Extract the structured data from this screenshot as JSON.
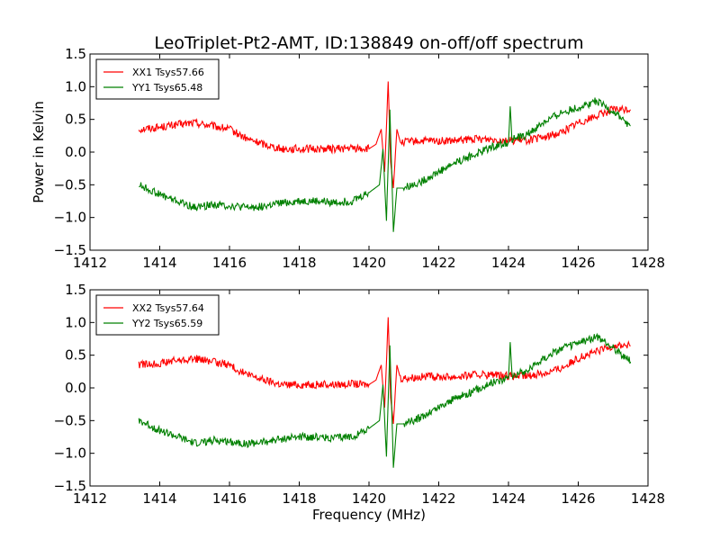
{
  "figure": {
    "title": "LeoTriplet-Pt2-AMT, ID:138849 on-off/off spectrum"
  },
  "chart_data": [
    {
      "type": "line",
      "title": "LeoTriplet-Pt2-AMT, ID:138849 on-off/off spectrum",
      "xlabel": "",
      "ylabel": "Power in Kelvin",
      "xlim": [
        1412,
        1428
      ],
      "ylim": [
        -1.5,
        1.5
      ],
      "xticks": [
        "1412",
        "1414",
        "1416",
        "1418",
        "1420",
        "1422",
        "1424",
        "1426",
        "1428"
      ],
      "yticks": [
        "1.5",
        "1.0",
        "0.5",
        "0.0",
        "−0.5",
        "−1.0",
        "−1.5"
      ],
      "grid": false,
      "legend": "top-left",
      "series": [
        {
          "name": "XX1 Tsys57.66",
          "color": "#ff0000",
          "points": [
            [
              1413.4,
              0.35
            ],
            [
              1414.0,
              0.38
            ],
            [
              1414.5,
              0.42
            ],
            [
              1415.0,
              0.45
            ],
            [
              1415.5,
              0.4
            ],
            [
              1416.0,
              0.35
            ],
            [
              1416.5,
              0.2
            ],
            [
              1417.0,
              0.12
            ],
            [
              1417.5,
              0.05
            ],
            [
              1418.0,
              0.05
            ],
            [
              1418.5,
              0.05
            ],
            [
              1419.0,
              0.05
            ],
            [
              1419.5,
              0.06
            ],
            [
              1420.0,
              0.05
            ],
            [
              1420.2,
              0.12
            ],
            [
              1420.35,
              0.35
            ],
            [
              1420.45,
              -0.3
            ],
            [
              1420.55,
              1.08
            ],
            [
              1420.62,
              -0.15
            ],
            [
              1420.7,
              -0.55
            ],
            [
              1420.8,
              0.35
            ],
            [
              1420.9,
              0.15
            ],
            [
              1421.5,
              0.17
            ],
            [
              1422.0,
              0.17
            ],
            [
              1422.5,
              0.17
            ],
            [
              1423.0,
              0.2
            ],
            [
              1423.5,
              0.2
            ],
            [
              1424.0,
              0.18
            ],
            [
              1424.5,
              0.18
            ],
            [
              1425.0,
              0.22
            ],
            [
              1425.5,
              0.3
            ],
            [
              1426.0,
              0.45
            ],
            [
              1426.5,
              0.55
            ],
            [
              1427.0,
              0.65
            ],
            [
              1427.5,
              0.65
            ]
          ]
        },
        {
          "name": "YY1 Tsys65.48",
          "color": "#008000",
          "points": [
            [
              1413.4,
              -0.5
            ],
            [
              1414.0,
              -0.65
            ],
            [
              1414.5,
              -0.75
            ],
            [
              1415.0,
              -0.85
            ],
            [
              1415.5,
              -0.8
            ],
            [
              1416.0,
              -0.82
            ],
            [
              1416.5,
              -0.85
            ],
            [
              1417.0,
              -0.83
            ],
            [
              1417.5,
              -0.78
            ],
            [
              1418.0,
              -0.75
            ],
            [
              1418.5,
              -0.75
            ],
            [
              1419.0,
              -0.77
            ],
            [
              1419.5,
              -0.75
            ],
            [
              1420.0,
              -0.62
            ],
            [
              1420.3,
              -0.5
            ],
            [
              1420.4,
              0.05
            ],
            [
              1420.5,
              -1.05
            ],
            [
              1420.6,
              0.65
            ],
            [
              1420.7,
              -1.22
            ],
            [
              1420.8,
              -0.55
            ],
            [
              1421.0,
              -0.55
            ],
            [
              1421.5,
              -0.45
            ],
            [
              1422.0,
              -0.3
            ],
            [
              1422.5,
              -0.15
            ],
            [
              1423.0,
              -0.05
            ],
            [
              1423.5,
              0.08
            ],
            [
              1424.0,
              0.15
            ],
            [
              1424.05,
              0.7
            ],
            [
              1424.1,
              0.2
            ],
            [
              1424.5,
              0.25
            ],
            [
              1425.0,
              0.45
            ],
            [
              1425.5,
              0.6
            ],
            [
              1426.0,
              0.68
            ],
            [
              1426.5,
              0.78
            ],
            [
              1427.0,
              0.62
            ],
            [
              1427.5,
              0.4
            ]
          ]
        }
      ]
    },
    {
      "type": "line",
      "title": "",
      "xlabel": "Frequency (MHz)",
      "ylabel": "",
      "xlim": [
        1412,
        1428
      ],
      "ylim": [
        -1.5,
        1.5
      ],
      "xticks": [
        "1412",
        "1414",
        "1416",
        "1418",
        "1420",
        "1422",
        "1424",
        "1426",
        "1428"
      ],
      "yticks": [
        "1.5",
        "1.0",
        "0.5",
        "0.0",
        "−0.5",
        "−1.0",
        "−1.5"
      ],
      "grid": false,
      "legend": "top-left",
      "series": [
        {
          "name": "XX2 Tsys57.64",
          "color": "#ff0000",
          "points": [
            [
              1413.4,
              0.35
            ],
            [
              1414.0,
              0.38
            ],
            [
              1414.5,
              0.42
            ],
            [
              1415.0,
              0.45
            ],
            [
              1415.5,
              0.4
            ],
            [
              1416.0,
              0.35
            ],
            [
              1416.5,
              0.2
            ],
            [
              1417.0,
              0.12
            ],
            [
              1417.5,
              0.05
            ],
            [
              1418.0,
              0.05
            ],
            [
              1418.5,
              0.05
            ],
            [
              1419.0,
              0.05
            ],
            [
              1419.5,
              0.06
            ],
            [
              1420.0,
              0.05
            ],
            [
              1420.2,
              0.12
            ],
            [
              1420.35,
              0.35
            ],
            [
              1420.45,
              -0.3
            ],
            [
              1420.55,
              1.08
            ],
            [
              1420.62,
              -0.15
            ],
            [
              1420.7,
              -0.55
            ],
            [
              1420.8,
              0.35
            ],
            [
              1420.9,
              0.15
            ],
            [
              1421.5,
              0.17
            ],
            [
              1422.0,
              0.17
            ],
            [
              1422.5,
              0.17
            ],
            [
              1423.0,
              0.2
            ],
            [
              1423.5,
              0.2
            ],
            [
              1424.0,
              0.18
            ],
            [
              1424.5,
              0.18
            ],
            [
              1425.0,
              0.22
            ],
            [
              1425.5,
              0.3
            ],
            [
              1426.0,
              0.45
            ],
            [
              1426.5,
              0.55
            ],
            [
              1427.0,
              0.65
            ],
            [
              1427.5,
              0.65
            ]
          ]
        },
        {
          "name": "YY2 Tsys65.59",
          "color": "#008000",
          "points": [
            [
              1413.4,
              -0.5
            ],
            [
              1414.0,
              -0.65
            ],
            [
              1414.5,
              -0.75
            ],
            [
              1415.0,
              -0.85
            ],
            [
              1415.5,
              -0.8
            ],
            [
              1416.0,
              -0.82
            ],
            [
              1416.5,
              -0.85
            ],
            [
              1417.0,
              -0.83
            ],
            [
              1417.5,
              -0.78
            ],
            [
              1418.0,
              -0.75
            ],
            [
              1418.5,
              -0.75
            ],
            [
              1419.0,
              -0.77
            ],
            [
              1419.5,
              -0.75
            ],
            [
              1420.0,
              -0.62
            ],
            [
              1420.3,
              -0.5
            ],
            [
              1420.4,
              0.05
            ],
            [
              1420.5,
              -1.05
            ],
            [
              1420.6,
              0.65
            ],
            [
              1420.7,
              -1.22
            ],
            [
              1420.8,
              -0.55
            ],
            [
              1421.0,
              -0.55
            ],
            [
              1421.5,
              -0.45
            ],
            [
              1422.0,
              -0.3
            ],
            [
              1422.5,
              -0.15
            ],
            [
              1423.0,
              -0.05
            ],
            [
              1423.5,
              0.08
            ],
            [
              1424.0,
              0.15
            ],
            [
              1424.05,
              0.7
            ],
            [
              1424.1,
              0.2
            ],
            [
              1424.5,
              0.25
            ],
            [
              1425.0,
              0.45
            ],
            [
              1425.5,
              0.6
            ],
            [
              1426.0,
              0.68
            ],
            [
              1426.5,
              0.78
            ],
            [
              1427.0,
              0.62
            ],
            [
              1427.5,
              0.4
            ]
          ]
        }
      ]
    }
  ]
}
